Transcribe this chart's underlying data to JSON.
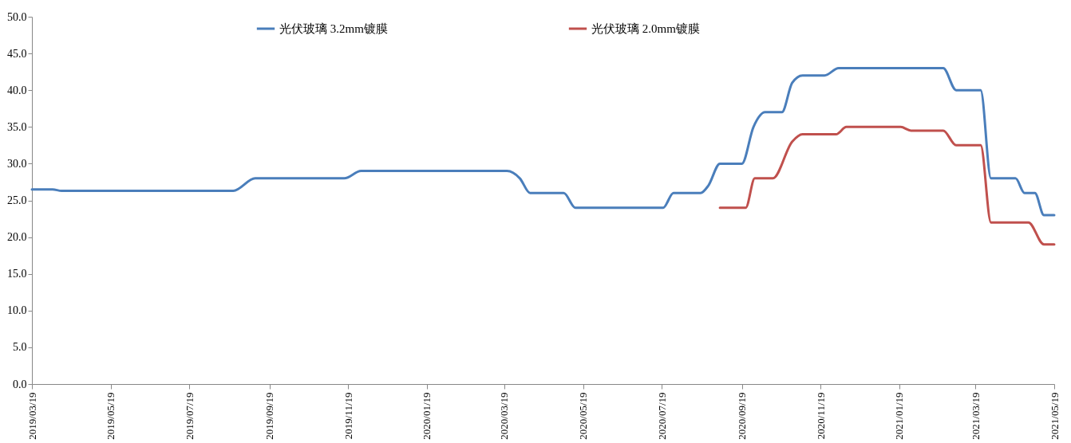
{
  "chart_data": {
    "type": "line",
    "legend": "top",
    "grid": false,
    "marker": "none",
    "line_style": "solid",
    "xlim": [
      "2019-03-19",
      "2021-05-19"
    ],
    "xticks": [
      {
        "value": "2019-03-19",
        "label": "2019/03/19"
      },
      {
        "value": "2019-05-19",
        "label": "2019/05/19"
      },
      {
        "value": "2019-07-19",
        "label": "2019/07/19"
      },
      {
        "value": "2019-09-19",
        "label": "2019/09/19"
      },
      {
        "value": "2019-11-19",
        "label": "2019/11/19"
      },
      {
        "value": "2020-01-19",
        "label": "2020/01/19"
      },
      {
        "value": "2020-03-19",
        "label": "2020/03/19"
      },
      {
        "value": "2020-05-19",
        "label": "2020/05/19"
      },
      {
        "value": "2020-07-19",
        "label": "2020/07/19"
      },
      {
        "value": "2020-09-19",
        "label": "2020/09/19"
      },
      {
        "value": "2020-11-19",
        "label": "2020/11/19"
      },
      {
        "value": "2021-01-19",
        "label": "2021/01/19"
      },
      {
        "value": "2021-03-19",
        "label": "2021/03/19"
      },
      {
        "value": "2021-05-19",
        "label": "2021/05/19"
      }
    ],
    "ylim": [
      0,
      50
    ],
    "yticks": [
      {
        "value": 0,
        "label": "0.0"
      },
      {
        "value": 5,
        "label": "5.0"
      },
      {
        "value": 10,
        "label": "10.0"
      },
      {
        "value": 15,
        "label": "15.0"
      },
      {
        "value": 20,
        "label": "20.0"
      },
      {
        "value": 25,
        "label": "25.0"
      },
      {
        "value": 30,
        "label": "30.0"
      },
      {
        "value": 35,
        "label": "35.0"
      },
      {
        "value": 40,
        "label": "40.0"
      },
      {
        "value": 45,
        "label": "45.0"
      },
      {
        "value": 50,
        "label": "50.0"
      }
    ],
    "series": [
      {
        "name": "光伏玻璃 3.2mm镀膜",
        "color": "#4a7ebb",
        "x": [
          "2019-03-19",
          "2019-04-04",
          "2019-04-11",
          "2019-08-22",
          "2019-09-08",
          "2019-11-16",
          "2019-11-29",
          "2020-03-21",
          "2020-03-31",
          "2020-04-08",
          "2020-05-04",
          "2020-05-13",
          "2020-07-20",
          "2020-07-28",
          "2020-08-18",
          "2020-08-24",
          "2020-09-02",
          "2020-09-19",
          "2020-09-28",
          "2020-10-07",
          "2020-10-20",
          "2020-10-28",
          "2020-11-05",
          "2020-11-22",
          "2020-12-03",
          "2021-02-22",
          "2021-03-04",
          "2021-03-16",
          "2021-03-23",
          "2021-03-31",
          "2021-04-19",
          "2021-04-26",
          "2021-05-04",
          "2021-05-11",
          "2021-05-19"
        ],
        "values": [
          26.5,
          26.5,
          26.3,
          26.3,
          28,
          28,
          29,
          29,
          28,
          26,
          26,
          24,
          24,
          26,
          26,
          27,
          30,
          30,
          35,
          37,
          37,
          41,
          42,
          42,
          43,
          43,
          40,
          40,
          40,
          28,
          28,
          26,
          26,
          23,
          23
        ]
      },
      {
        "name": "光伏玻璃 2.0mm镀膜",
        "color": "#c0504d",
        "x": [
          "2020-09-02",
          "2020-09-22",
          "2020-09-29",
          "2020-10-13",
          "2020-10-28",
          "2020-11-05",
          "2020-12-01",
          "2020-12-09",
          "2021-01-20",
          "2021-01-28",
          "2021-02-22",
          "2021-03-04",
          "2021-03-23",
          "2021-03-31",
          "2021-04-29",
          "2021-05-11",
          "2021-05-19"
        ],
        "values": [
          24,
          24,
          28,
          28,
          33,
          34,
          34,
          35,
          35,
          34.5,
          34.5,
          32.5,
          32.5,
          22,
          22,
          19,
          19
        ]
      }
    ]
  }
}
